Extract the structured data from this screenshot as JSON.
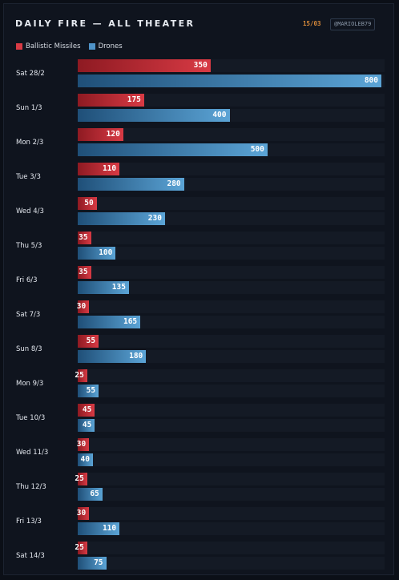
{
  "header": {
    "title": "DAILY FIRE — ALL THEATER",
    "date_tag": "15/03",
    "handle": "@MARIOLEB79"
  },
  "colors": {
    "ballistic": "#d83a44",
    "drones": "#4f93c8"
  },
  "chart_data": {
    "type": "bar",
    "orientation": "horizontal",
    "title": "DAILY FIRE — ALL THEATER",
    "categories": [
      "Sat 28/2",
      "Sun 1/3",
      "Mon 2/3",
      "Tue 3/3",
      "Wed 4/3",
      "Thu 5/3",
      "Fri 6/3",
      "Sat 7/3",
      "Sun 8/3",
      "Mon 9/3",
      "Tue 10/3",
      "Wed 11/3",
      "Thu 12/3",
      "Fri 13/3",
      "Sat 14/3"
    ],
    "series": [
      {
        "name": "Ballistic Missiles",
        "values": [
          350,
          175,
          120,
          110,
          50,
          35,
          35,
          30,
          55,
          25,
          45,
          30,
          25,
          30,
          25
        ]
      },
      {
        "name": "Drones",
        "values": [
          800,
          400,
          500,
          280,
          230,
          100,
          135,
          165,
          180,
          55,
          45,
          40,
          65,
          110,
          75
        ]
      }
    ],
    "legend": "top-left"
  }
}
